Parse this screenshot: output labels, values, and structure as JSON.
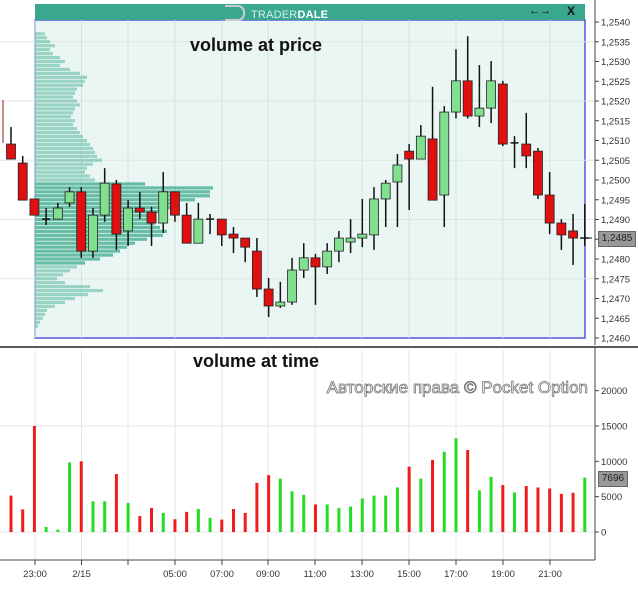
{
  "header": {
    "brand_a": "TRADER",
    "brand_b": "DALE",
    "arrows": "←→",
    "close": "X"
  },
  "labels": {
    "price_panel": "volume at price",
    "time_panel": "volume at time"
  },
  "watermark": "Авторские права © Pocket Option",
  "current_price": "1,2485",
  "current_volume": "7696",
  "colors": {
    "up": "#80e090",
    "down": "#e01010",
    "vol_up": "#22dd22",
    "vol_down": "#ee1c1c",
    "profile": "#3aaa8c",
    "box": "#5555dd",
    "box_fill": "#eaf6f3",
    "header": "#3aa88e"
  },
  "chart_data": [
    {
      "type": "candlestick",
      "title": "volume at price",
      "price_ticks": [
        "1,2540",
        "1,2535",
        "1,2530",
        "1,2525",
        "1,2520",
        "1,2515",
        "1,2510",
        "1,2505",
        "1,2500",
        "1,2495",
        "1,2490",
        "1,2485",
        "1,2480",
        "1,2475",
        "1,2470",
        "1,2465",
        "1,2460"
      ],
      "ylim": [
        1.246,
        1.254
      ],
      "ohlc": [
        [
          1.25091,
          1.25134,
          1.25053,
          1.25053
        ],
        [
          1.25043,
          1.25061,
          1.24949,
          1.24949
        ],
        [
          1.24952,
          1.24952,
          1.24911,
          1.24911
        ],
        [
          1.24901,
          1.24929,
          1.24886,
          1.24901
        ],
        [
          1.24901,
          1.24942,
          1.24901,
          1.24929
        ],
        [
          1.24942,
          1.24982,
          1.24932,
          1.2497
        ],
        [
          1.2497,
          1.24982,
          1.24803,
          1.2482
        ],
        [
          1.2482,
          1.24929,
          1.24803,
          1.24911
        ],
        [
          1.24911,
          1.2503,
          1.24894,
          1.24992
        ],
        [
          1.2499,
          1.25,
          1.24823,
          1.24863
        ],
        [
          1.24871,
          1.24949,
          1.24833,
          1.24929
        ],
        [
          1.24929,
          1.2497,
          1.24901,
          1.24919
        ],
        [
          1.24919,
          1.24932,
          1.24833,
          1.24891
        ],
        [
          1.24891,
          1.2502,
          1.24866,
          1.2497
        ],
        [
          1.2497,
          1.2497,
          1.24894,
          1.24911
        ],
        [
          1.24911,
          1.24942,
          1.2484,
          1.2484
        ],
        [
          1.2484,
          1.24942,
          1.2484,
          1.24901
        ],
        [
          1.24901,
          1.24914,
          1.24863,
          1.24901
        ],
        [
          1.24901,
          1.24901,
          1.24833,
          1.24861
        ],
        [
          1.24863,
          1.24881,
          1.24815,
          1.24853
        ],
        [
          1.24853,
          1.24853,
          1.24792,
          1.2483
        ],
        [
          1.2482,
          1.24853,
          1.24704,
          1.24724
        ],
        [
          1.24724,
          1.24752,
          1.24653,
          1.24681
        ],
        [
          1.24681,
          1.24742,
          1.24676,
          1.24691
        ],
        [
          1.24691,
          1.24803,
          1.24684,
          1.24772
        ],
        [
          1.24772,
          1.2484,
          1.24752,
          1.24803
        ],
        [
          1.24803,
          1.24813,
          1.24684,
          1.2478
        ],
        [
          1.2478,
          1.2484,
          1.24762,
          1.2482
        ],
        [
          1.2482,
          1.24871,
          1.24792,
          1.24853
        ],
        [
          1.24843,
          1.24901,
          1.24815,
          1.24853
        ],
        [
          1.24853,
          1.24952,
          1.2483,
          1.24863
        ],
        [
          1.24861,
          1.24982,
          1.24823,
          1.24952
        ],
        [
          1.24952,
          1.25,
          1.24881,
          1.24992
        ],
        [
          1.24995,
          1.25066,
          1.24881,
          1.25038
        ],
        [
          1.25073,
          1.25091,
          1.24924,
          1.25053
        ],
        [
          1.25053,
          1.25139,
          1.25053,
          1.25111
        ],
        [
          1.25104,
          1.25236,
          1.24949,
          1.24949
        ],
        [
          1.24962,
          1.25187,
          1.24881,
          1.25172
        ],
        [
          1.25172,
          1.25331,
          1.25156,
          1.25251
        ],
        [
          1.25251,
          1.25364,
          1.25156,
          1.25162
        ],
        [
          1.25162,
          1.25291,
          1.25134,
          1.25182
        ],
        [
          1.25182,
          1.25301,
          1.25144,
          1.25251
        ],
        [
          1.25243,
          1.25251,
          1.25086,
          1.25091
        ],
        [
          1.25094,
          1.25111,
          1.2503,
          1.25094
        ],
        [
          1.25091,
          1.2517,
          1.2503,
          1.25061
        ],
        [
          1.25073,
          1.25081,
          1.24952,
          1.24962
        ],
        [
          1.24962,
          1.2502,
          1.24863,
          1.24891
        ],
        [
          1.24891,
          1.24901,
          1.24823,
          1.24861
        ],
        [
          1.24871,
          1.24914,
          1.24785,
          1.24853
        ],
        [
          1.24853,
          1.24939,
          1.24833,
          1.24853
        ]
      ],
      "profile_top_price": 1.2537,
      "profile_step": 0.0001,
      "profile_volumes": [
        10,
        12,
        15,
        20,
        15,
        18,
        25,
        30,
        25,
        35,
        45,
        52,
        50,
        48,
        42,
        40,
        38,
        42,
        45,
        40,
        38,
        36,
        40,
        38,
        42,
        45,
        48,
        52,
        55,
        58,
        60,
        62,
        67,
        58,
        52,
        50,
        55,
        60,
        110,
        178,
        175,
        175,
        160,
        140,
        138,
        130,
        118,
        115,
        120,
        125,
        132,
        128,
        112,
        100,
        92,
        85,
        78,
        65,
        50,
        42,
        35,
        28,
        22,
        30,
        55,
        68,
        53,
        40,
        30,
        20,
        12,
        10,
        8,
        5,
        3
      ]
    },
    {
      "type": "bar",
      "title": "volume at time",
      "y_ticks": [
        "0",
        "5000",
        "10000",
        "15000",
        "20000"
      ],
      "ylim": [
        -2000,
        24000
      ],
      "x_ticks": [
        "23:00",
        "2/15",
        "",
        "05:00",
        "07:00",
        "09:00",
        "11:00",
        "13:00",
        "15:00",
        "17:00",
        "19:00",
        "21:00"
      ],
      "values": [
        5150,
        3200,
        15000,
        700,
        330,
        9850,
        10000,
        4350,
        4350,
        8200,
        4100,
        2250,
        3400,
        2700,
        1800,
        2850,
        3250,
        2000,
        1750,
        3250,
        2700,
        6950,
        8050,
        7550,
        5750,
        5250,
        3900,
        3900,
        3400,
        3600,
        4750,
        5150,
        5150,
        6300,
        9250,
        7550,
        10200,
        11350,
        13250,
        11600,
        5900,
        7800,
        6650,
        5600,
        6500,
        6300,
        6150,
        5400,
        5550,
        7696
      ],
      "directions": [
        "d",
        "d",
        "d",
        "u",
        "u",
        "u",
        "d",
        "u",
        "u",
        "d",
        "u",
        "d",
        "d",
        "u",
        "d",
        "d",
        "u",
        "u",
        "d",
        "d",
        "d",
        "d",
        "d",
        "u",
        "u",
        "u",
        "d",
        "u",
        "u",
        "u",
        "u",
        "u",
        "u",
        "u",
        "d",
        "u",
        "d",
        "u",
        "u",
        "d",
        "u",
        "u",
        "d",
        "u",
        "d",
        "d",
        "d",
        "d",
        "d",
        "u"
      ]
    }
  ]
}
